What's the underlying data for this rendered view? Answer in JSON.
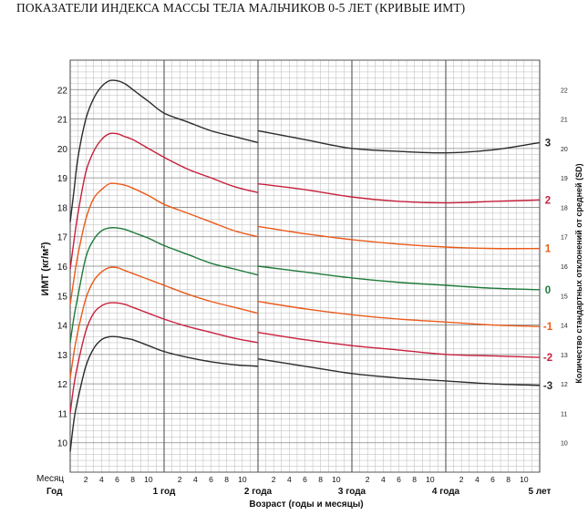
{
  "title": "ПОКАЗАТЕЛИ ИНДЕКСА МАССЫ ТЕЛА МАЛЬЧИКОВ 0-5 ЛЕТ (КРИВЫЕ ИМТ)",
  "chart_data": {
    "type": "line",
    "ylabel": "ИМТ (кг/м²)",
    "ylabel_right": "Количество стандартных отклонений от средней (SD)",
    "xlabel": "Возраст (годы и месяцы)",
    "row_label_month": "Месяц",
    "row_label_year": "Год",
    "month_ticks": [
      "2",
      "4",
      "6",
      "8",
      "10"
    ],
    "year_ticks": [
      "1 год",
      "2 года",
      "3 года",
      "4 года",
      "5 лет"
    ],
    "ylim": [
      9,
      23
    ],
    "y_ticks": [
      "10",
      "11",
      "12",
      "13",
      "14",
      "15",
      "16",
      "17",
      "18",
      "19",
      "20",
      "21",
      "22"
    ],
    "xlim_months": [
      0,
      60
    ],
    "grid": true,
    "series": [
      {
        "name": "3",
        "color": "#2b2b2b",
        "x": [
          0,
          0.5,
          1,
          2,
          3,
          4,
          5,
          6,
          7,
          8,
          10,
          12,
          15,
          18,
          21,
          24
        ],
        "y": [
          17.5,
          18.6,
          19.7,
          21.0,
          21.7,
          22.1,
          22.3,
          22.3,
          22.2,
          22.0,
          21.6,
          21.2,
          20.9,
          20.6,
          20.4,
          20.2
        ],
        "x2": [
          24,
          30,
          36,
          42,
          48,
          54,
          60
        ],
        "y2": [
          20.6,
          20.3,
          20.0,
          19.9,
          19.85,
          19.95,
          20.2
        ]
      },
      {
        "name": "2",
        "color": "#c8203c",
        "x": [
          0,
          0.5,
          1,
          2,
          3,
          4,
          5,
          6,
          7,
          8,
          10,
          12,
          15,
          18,
          21,
          24
        ],
        "y": [
          15.9,
          16.9,
          17.8,
          19.2,
          19.9,
          20.3,
          20.5,
          20.5,
          20.4,
          20.3,
          20.0,
          19.7,
          19.3,
          19.0,
          18.7,
          18.5
        ],
        "x2": [
          24,
          30,
          36,
          42,
          48,
          54,
          60
        ],
        "y2": [
          18.8,
          18.6,
          18.35,
          18.2,
          18.15,
          18.2,
          18.25
        ]
      },
      {
        "name": "1",
        "color": "#ea5a19",
        "x": [
          0,
          0.5,
          1,
          2,
          3,
          4,
          5,
          6,
          7,
          8,
          10,
          12,
          15,
          18,
          21,
          24
        ],
        "y": [
          14.7,
          15.6,
          16.4,
          17.6,
          18.3,
          18.6,
          18.8,
          18.8,
          18.75,
          18.65,
          18.4,
          18.1,
          17.8,
          17.5,
          17.2,
          17.0
        ],
        "x2": [
          24,
          30,
          36,
          42,
          48,
          54,
          60
        ],
        "y2": [
          17.35,
          17.1,
          16.9,
          16.75,
          16.65,
          16.6,
          16.6
        ]
      },
      {
        "name": "0",
        "color": "#1e7a3a",
        "x": [
          0,
          0.5,
          1,
          2,
          3,
          4,
          5,
          6,
          7,
          8,
          10,
          12,
          15,
          18,
          21,
          24
        ],
        "y": [
          13.4,
          14.3,
          15.0,
          16.3,
          16.9,
          17.2,
          17.3,
          17.3,
          17.25,
          17.15,
          16.95,
          16.7,
          16.4,
          16.1,
          15.9,
          15.7
        ],
        "x2": [
          24,
          30,
          36,
          42,
          48,
          54,
          60
        ],
        "y2": [
          16.0,
          15.8,
          15.6,
          15.45,
          15.35,
          15.25,
          15.2
        ]
      },
      {
        "name": "-1",
        "color": "#ea5a19",
        "x": [
          0,
          0.5,
          1,
          2,
          3,
          4,
          5,
          6,
          7,
          8,
          10,
          12,
          15,
          18,
          21,
          24
        ],
        "y": [
          12.2,
          13.1,
          13.8,
          14.9,
          15.5,
          15.8,
          15.95,
          15.95,
          15.85,
          15.75,
          15.55,
          15.35,
          15.05,
          14.8,
          14.6,
          14.4
        ],
        "x2": [
          24,
          30,
          36,
          42,
          48,
          54,
          60
        ],
        "y2": [
          14.8,
          14.55,
          14.35,
          14.2,
          14.1,
          14.0,
          13.95
        ]
      },
      {
        "name": "-2",
        "color": "#c8203c",
        "x": [
          0,
          0.5,
          1,
          2,
          3,
          4,
          5,
          6,
          7,
          8,
          10,
          12,
          15,
          18,
          21,
          24
        ],
        "y": [
          11.0,
          12.0,
          12.7,
          13.8,
          14.4,
          14.65,
          14.75,
          14.75,
          14.7,
          14.6,
          14.4,
          14.2,
          13.95,
          13.75,
          13.55,
          13.4
        ],
        "x2": [
          24,
          30,
          36,
          42,
          48,
          54,
          60
        ],
        "y2": [
          13.75,
          13.5,
          13.3,
          13.15,
          13.0,
          12.95,
          12.9
        ]
      },
      {
        "name": "-3",
        "color": "#2b2b2b",
        "x": [
          0,
          0.5,
          1,
          2,
          3,
          4,
          5,
          6,
          7,
          8,
          10,
          12,
          15,
          18,
          21,
          24
        ],
        "y": [
          9.7,
          10.8,
          11.5,
          12.6,
          13.2,
          13.5,
          13.6,
          13.6,
          13.55,
          13.5,
          13.3,
          13.1,
          12.9,
          12.75,
          12.65,
          12.6
        ],
        "x2": [
          24,
          30,
          36,
          42,
          48,
          54,
          60
        ],
        "y2": [
          12.85,
          12.6,
          12.35,
          12.2,
          12.1,
          12.0,
          11.95
        ]
      }
    ]
  }
}
